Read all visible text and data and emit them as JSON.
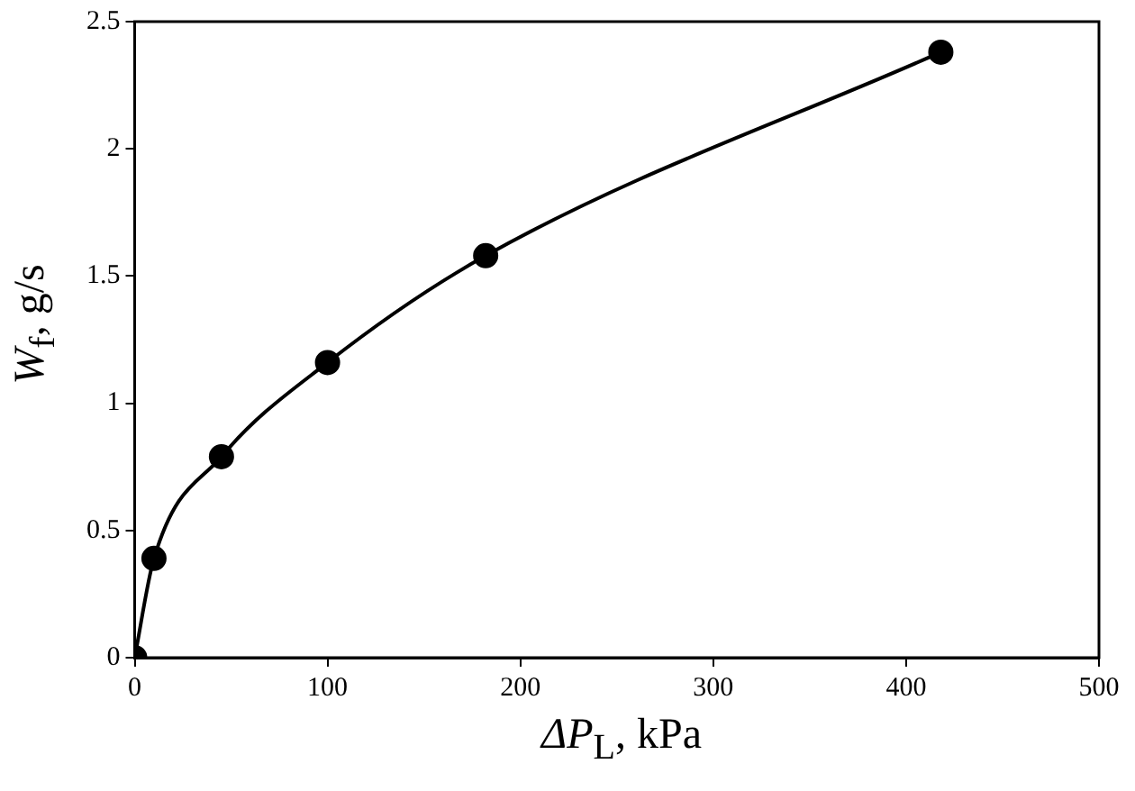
{
  "chart_data": {
    "type": "line",
    "xlabel": "ΔP$_{L}$, kPa",
    "ylabel": "W$_{f}$, g/s",
    "x": [
      0,
      10,
      45,
      100,
      182,
      418
    ],
    "series": [
      {
        "color": "#000000",
        "values": [
          0,
          0.39,
          0.79,
          1.16,
          1.58,
          2.38
        ]
      }
    ],
    "xlim": [
      0,
      500
    ],
    "xticks": [
      0,
      100,
      200,
      300,
      400,
      500
    ],
    "ylim": [
      0,
      2.5
    ],
    "yticks": [
      0,
      0.5,
      1,
      1.5,
      2,
      2.5
    ],
    "marker": "circle",
    "line_style": "solid",
    "grid": false,
    "legend": false
  }
}
